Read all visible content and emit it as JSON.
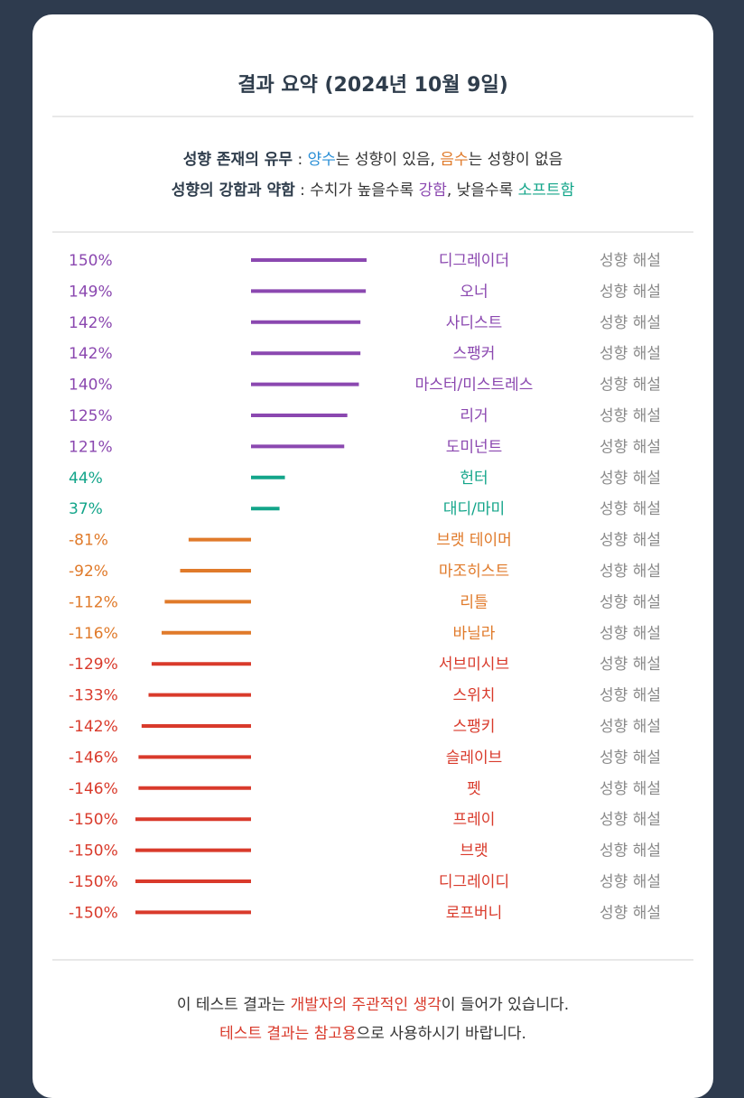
{
  "header": {
    "title": "결과 요약 (2024년 10월 9일)"
  },
  "legend": {
    "line1": {
      "label": "성향 존재의 유무",
      "sep": " : ",
      "pos_word": "양수",
      "pos_rest": "는 성향이 있음, ",
      "neg_word": "음수",
      "neg_rest": "는 성향이 없음"
    },
    "line2": {
      "label": "성향의 강함과 약함",
      "sep": " : ",
      "text1": "수치가 높을수록 ",
      "strong_word": "강함",
      "text2": ", 낮을수록 ",
      "soft_word": "소프트함"
    }
  },
  "colors": {
    "strong_positive": "#8b48b0",
    "weak_positive": "#13a58a",
    "weak_negative": "#e07a2a",
    "strong_negative": "#d93a2b",
    "explain": "#8a8a8a"
  },
  "chart_data": {
    "type": "bar",
    "orientation": "horizontal-diverging",
    "unit": "%",
    "explain_label": "성향 해설",
    "items": [
      {
        "name": "디그레이더",
        "value": 150,
        "label": "150%",
        "group": "strong_positive"
      },
      {
        "name": "오너",
        "value": 149,
        "label": "149%",
        "group": "strong_positive"
      },
      {
        "name": "사디스트",
        "value": 142,
        "label": "142%",
        "group": "strong_positive"
      },
      {
        "name": "스팽커",
        "value": 142,
        "label": "142%",
        "group": "strong_positive"
      },
      {
        "name": "마스터/미스트레스",
        "value": 140,
        "label": "140%",
        "group": "strong_positive"
      },
      {
        "name": "리거",
        "value": 125,
        "label": "125%",
        "group": "strong_positive"
      },
      {
        "name": "도미넌트",
        "value": 121,
        "label": "121%",
        "group": "strong_positive"
      },
      {
        "name": "헌터",
        "value": 44,
        "label": "44%",
        "group": "weak_positive"
      },
      {
        "name": "대디/마미",
        "value": 37,
        "label": "37%",
        "group": "weak_positive"
      },
      {
        "name": "브랫 테이머",
        "value": -81,
        "label": "-81%",
        "group": "weak_negative"
      },
      {
        "name": "마조히스트",
        "value": -92,
        "label": "-92%",
        "group": "weak_negative"
      },
      {
        "name": "리틀",
        "value": -112,
        "label": "-112%",
        "group": "weak_negative"
      },
      {
        "name": "바닐라",
        "value": -116,
        "label": "-116%",
        "group": "weak_negative"
      },
      {
        "name": "서브미시브",
        "value": -129,
        "label": "-129%",
        "group": "strong_negative"
      },
      {
        "name": "스위치",
        "value": -133,
        "label": "-133%",
        "group": "strong_negative"
      },
      {
        "name": "스팽키",
        "value": -142,
        "label": "-142%",
        "group": "strong_negative"
      },
      {
        "name": "슬레이브",
        "value": -146,
        "label": "-146%",
        "group": "strong_negative"
      },
      {
        "name": "펫",
        "value": -146,
        "label": "-146%",
        "group": "strong_negative"
      },
      {
        "name": "프레이",
        "value": -150,
        "label": "-150%",
        "group": "strong_negative"
      },
      {
        "name": "브랫",
        "value": -150,
        "label": "-150%",
        "group": "strong_negative"
      },
      {
        "name": "디그레이디",
        "value": -150,
        "label": "-150%",
        "group": "strong_negative"
      },
      {
        "name": "로프버니",
        "value": -150,
        "label": "-150%",
        "group": "strong_negative"
      }
    ]
  },
  "footer": {
    "line1_a": "이 테스트 결과는 ",
    "line1_b": "개발자의 주관적인 생각",
    "line1_c": "이 들어가 있습니다.",
    "line2_a": "테스트 결과는 참고용",
    "line2_b": "으로 사용하시기 바랍니다."
  }
}
